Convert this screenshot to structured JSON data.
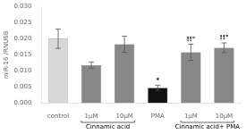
{
  "chart_data": {
    "type": "bar",
    "categories": [
      "control",
      "1μM",
      "10μM",
      "PMA",
      "1μM",
      "10μM"
    ],
    "values": [
      0.02,
      0.0118,
      0.0183,
      0.0048,
      0.0158,
      0.0172
    ],
    "errors": [
      0.003,
      0.001,
      0.0025,
      0.0008,
      0.0025,
      0.0015
    ],
    "colors": [
      "#d8d8d8",
      "#888888",
      "#888888",
      "#111111",
      "#888888",
      "#888888"
    ],
    "y_label": "miR-16 /RNU6B",
    "ylim": [
      0,
      0.03
    ],
    "yticks": [
      {
        "value": 0,
        "label": "0.000"
      },
      {
        "value": 0.005,
        "label": "0.005"
      },
      {
        "value": 0.01,
        "label": "0.010"
      },
      {
        "value": 0.015,
        "label": "0.015"
      },
      {
        "value": 0.02,
        "label": "0.020"
      },
      {
        "value": 0.025,
        "label": "0.025"
      },
      {
        "value": 0.03,
        "label": "0.030"
      }
    ],
    "annotations": [
      {
        "text": "*",
        "x": 3
      },
      {
        "text": "!!°",
        "x": 4
      },
      {
        "text": "!!°",
        "x": 5
      },
      {
        "text": "Cinnamic acid",
        "x": [
          1,
          2
        ]
      },
      {
        "text": "Cinnamic acid+ PMA",
        "x": [
          4,
          5
        ]
      }
    ],
    "grid": false
  }
}
